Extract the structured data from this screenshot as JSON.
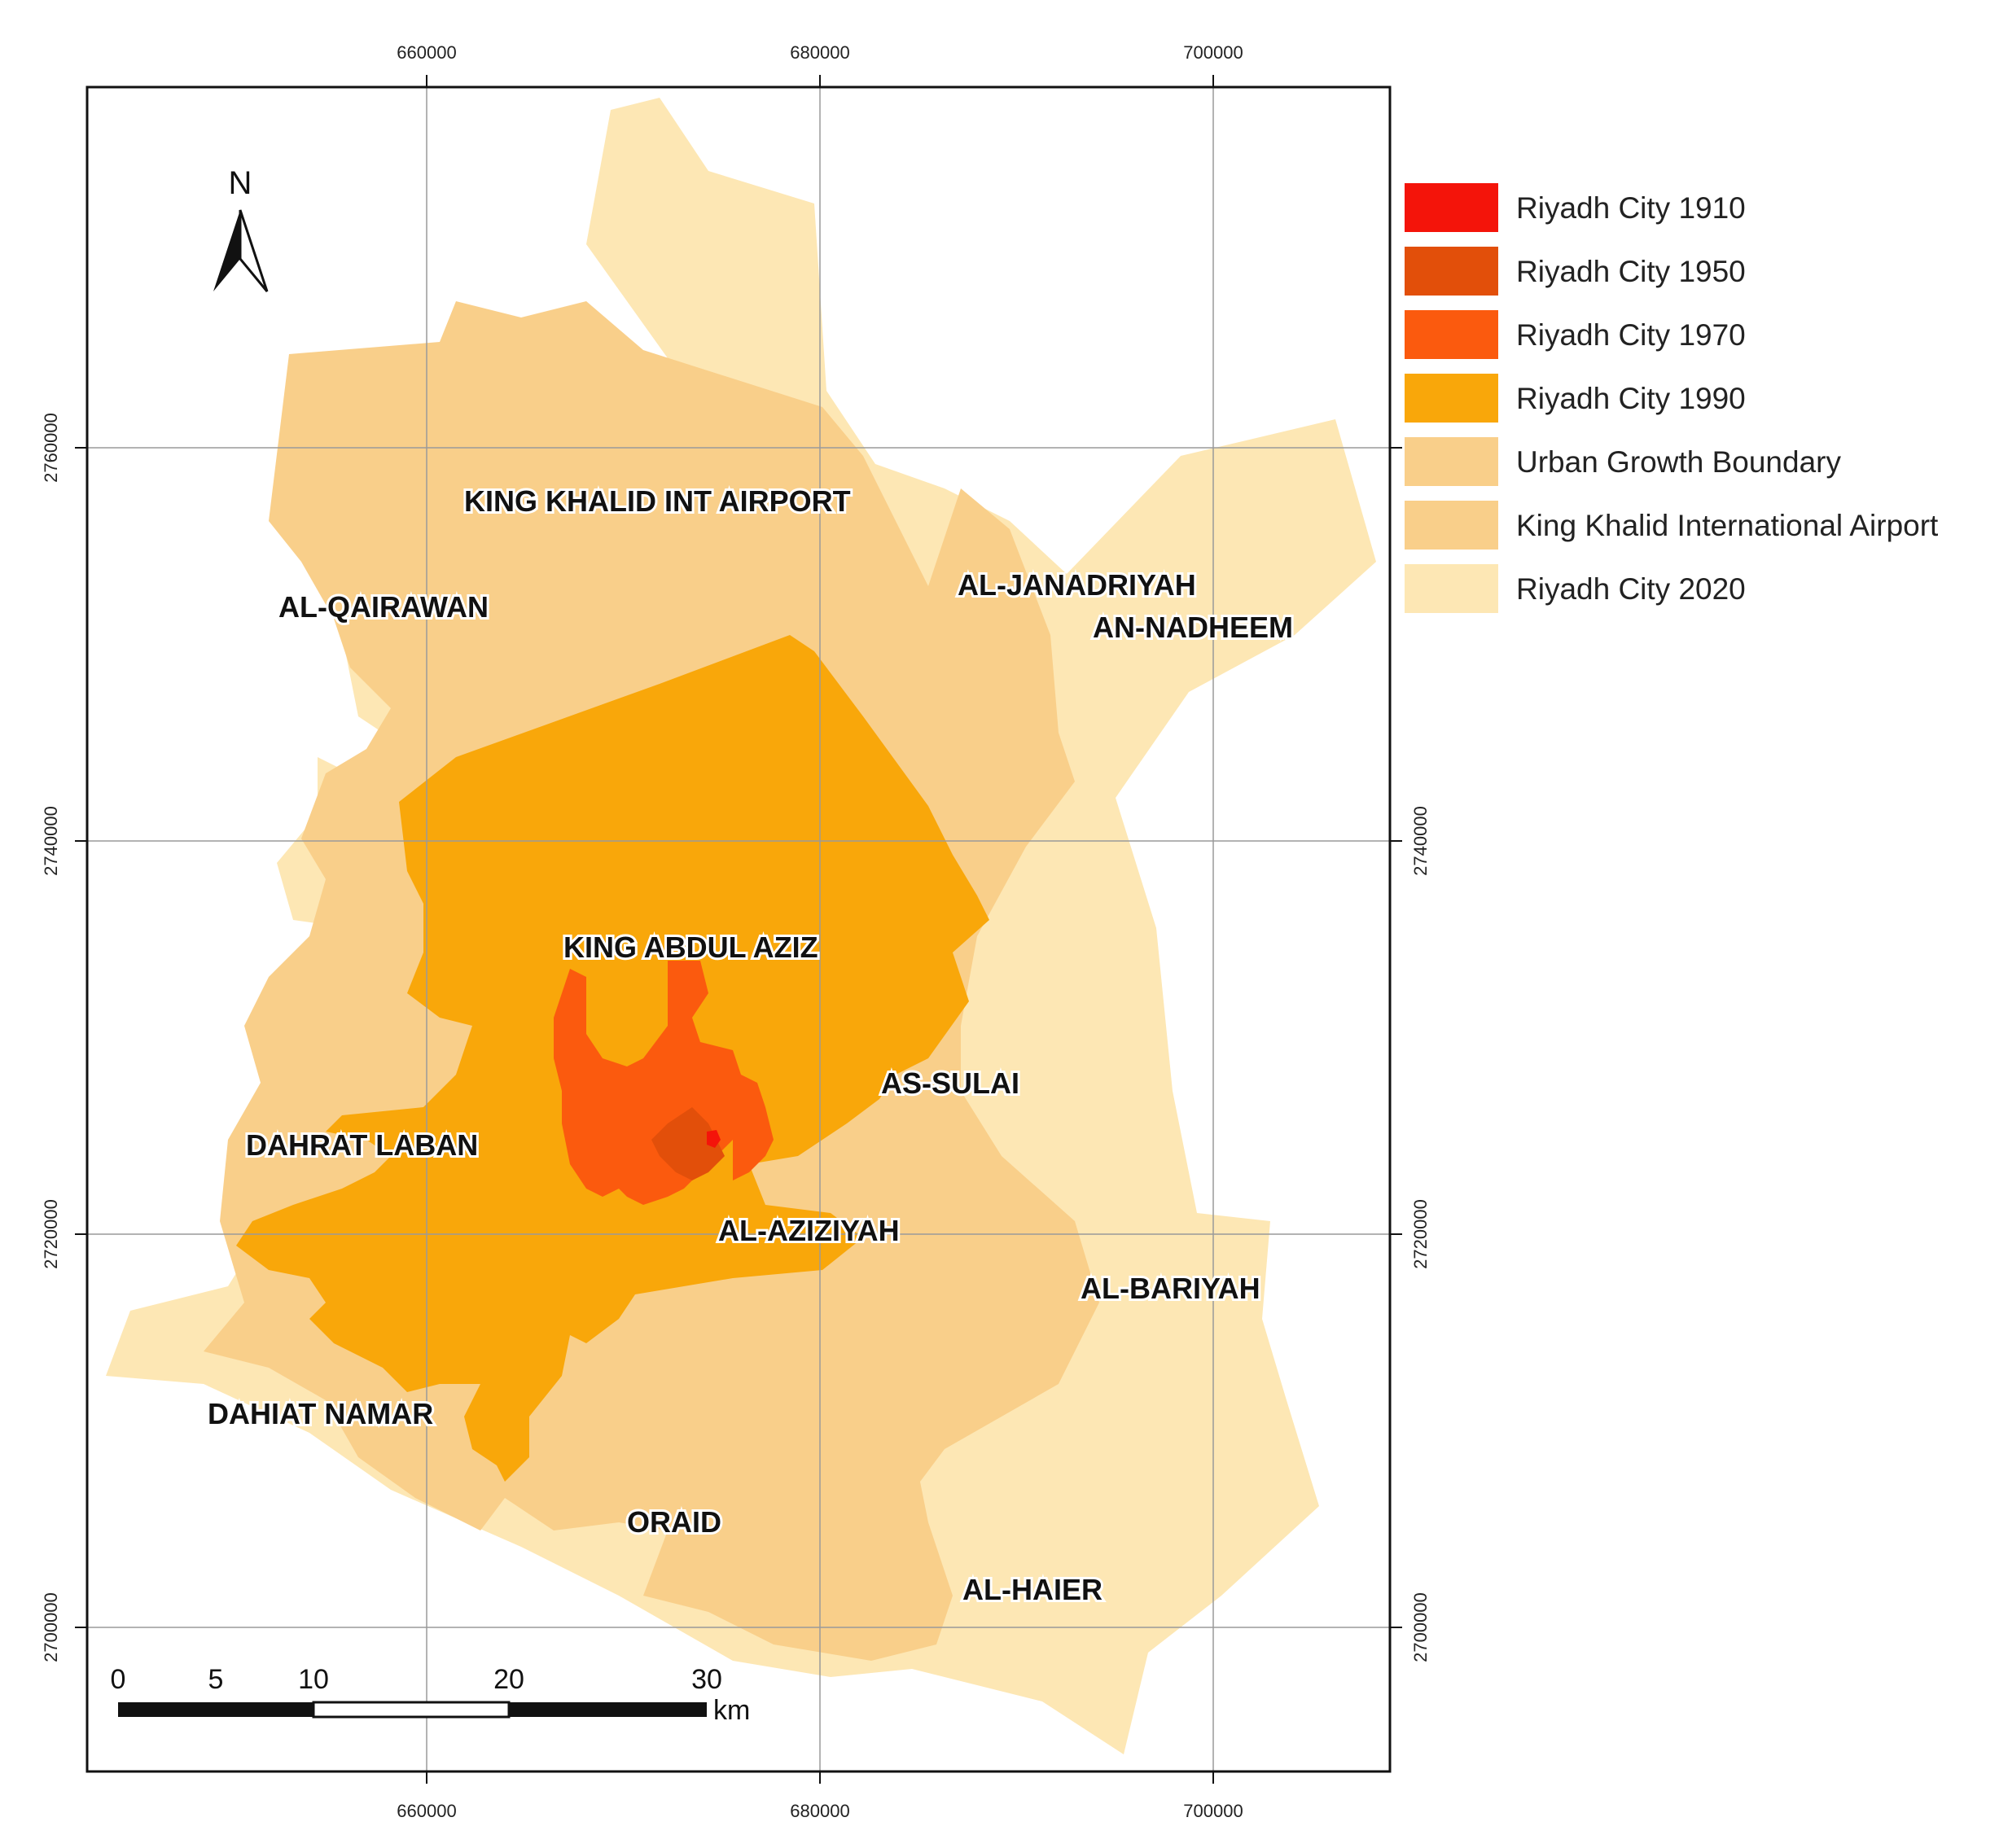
{
  "map": {
    "x_ticks": [
      "660000",
      "680000",
      "700000"
    ],
    "y_ticks": [
      "2760000",
      "2740000",
      "2720000",
      "2700000"
    ],
    "north_label": "N",
    "scale": {
      "ticks": [
        "0",
        "5",
        "10",
        "20",
        "30"
      ],
      "unit": "km"
    },
    "legend": [
      {
        "label": "Riyadh City 1910",
        "color": "#f4140a"
      },
      {
        "label": "Riyadh City 1950",
        "color": "#e24f0a"
      },
      {
        "label": "Riyadh City 1970",
        "color": "#fb5a0e"
      },
      {
        "label": "Riyadh City 1990",
        "color": "#f9a70a"
      },
      {
        "label": "Urban Growth Boundary",
        "color": "#f9cf8a"
      },
      {
        "label": "King Khalid International Airport",
        "color": "#f9cf8a"
      },
      {
        "label": "Riyadh City 2020",
        "color": "#fde7b4"
      }
    ],
    "places": [
      "KING KHALID INT AIRPORT",
      "AL-QAIRAWAN",
      "AL-JANADRIYAH",
      "AN-NADHEEM",
      "KING ABDUL AZIZ",
      "AS-SULAI",
      "DAHRAT LABAN",
      "AL-AZIZIYAH",
      "AL-BARIYAH",
      "DAHIAT NAMAR",
      "ORAID",
      "AL-HAIER"
    ]
  }
}
